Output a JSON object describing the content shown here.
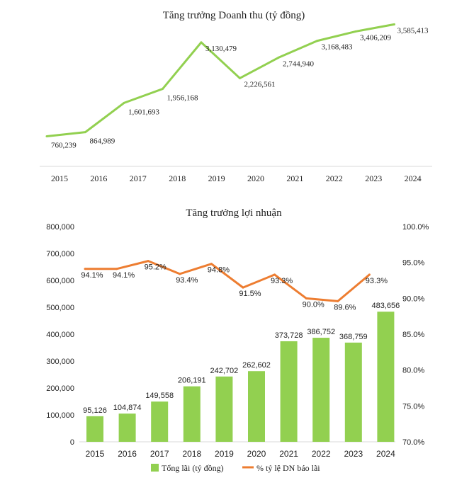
{
  "chart_data": [
    {
      "type": "line",
      "title": "Tăng trưởng Doanh thu (tỷ đồng)",
      "categories": [
        "2015",
        "2016",
        "2017",
        "2018",
        "2019",
        "2020",
        "2021",
        "2022",
        "2023",
        "2024"
      ],
      "values": [
        760239,
        864989,
        1601693,
        1956168,
        3130479,
        2226561,
        2744940,
        3168483,
        3406209,
        3585413
      ],
      "labels": [
        "760,239",
        "864,989",
        "1,601,693",
        "1,956,168",
        "3,130,479",
        "2,226,561",
        "2,744,940",
        "3,168,483",
        "3,406,209",
        "3,585,413"
      ],
      "ylim": [
        0,
        3700000
      ],
      "color": "#92d050",
      "grid": false
    },
    {
      "type": "bar",
      "title": "Tăng trưởng lợi nhuận",
      "categories": [
        "2015",
        "2016",
        "2017",
        "2018",
        "2019",
        "2020",
        "2021",
        "2022",
        "2023",
        "2024"
      ],
      "series": [
        {
          "name": "Tổng lãi (tỷ đồng)",
          "type": "bar",
          "axis": "left",
          "values": [
            95126,
            104874,
            149558,
            206191,
            242702,
            262602,
            373728,
            386752,
            368759,
            483656
          ],
          "labels": [
            "95,126",
            "104,874",
            "149,558",
            "206,191",
            "242,702",
            "262,602",
            "373,728",
            "386,752",
            "368,759",
            "483,656"
          ],
          "color": "#92d050"
        },
        {
          "name": "% tỷ lệ DN báo lãi",
          "type": "line",
          "axis": "right",
          "values": [
            94.1,
            94.1,
            95.2,
            93.4,
            94.8,
            91.5,
            93.3,
            90.0,
            89.6,
            93.3
          ],
          "labels": [
            "94.1%",
            "94.1%",
            "95.2%",
            "93.4%",
            "94.8%",
            "91.5%",
            "93.3%",
            "90.0%",
            "89.6%",
            "93.3%"
          ],
          "color": "#ed7d31"
        }
      ],
      "ylim": [
        0,
        800000
      ],
      "yticks": [
        "0",
        "100,000",
        "200,000",
        "300,000",
        "400,000",
        "500,000",
        "600,000",
        "700,000",
        "800,000"
      ],
      "y2lim": [
        70,
        100
      ],
      "y2ticks": [
        "70.0%",
        "75.0%",
        "80.0%",
        "85.0%",
        "90.0%",
        "95.0%",
        "100.0%"
      ],
      "legend": "bottom",
      "grid": false
    }
  ]
}
